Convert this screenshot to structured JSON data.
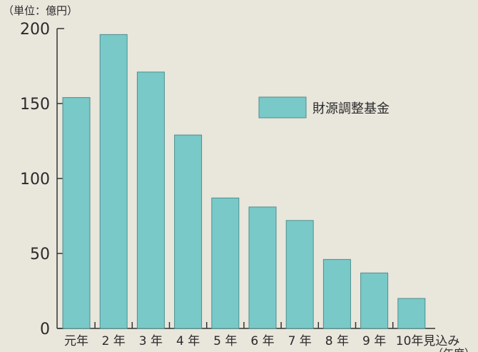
{
  "chart_data": {
    "type": "bar",
    "unit_label": "（単位：億円）",
    "x_unit_label": "（年度）",
    "categories": [
      "元年",
      "2 年",
      "3 年",
      "4 年",
      "5 年",
      "6 年",
      "7 年",
      "8 年",
      "9 年",
      "10年見込み"
    ],
    "series": [
      {
        "name": "財源調整基金",
        "color": "#78c9c8",
        "values": [
          154,
          196,
          171,
          129,
          87,
          81,
          72,
          46,
          37,
          20
        ]
      }
    ],
    "ylim": [
      0,
      200
    ],
    "yticks": [
      0,
      50,
      100,
      150,
      200
    ],
    "grid": false,
    "legend_position": "top-right"
  }
}
